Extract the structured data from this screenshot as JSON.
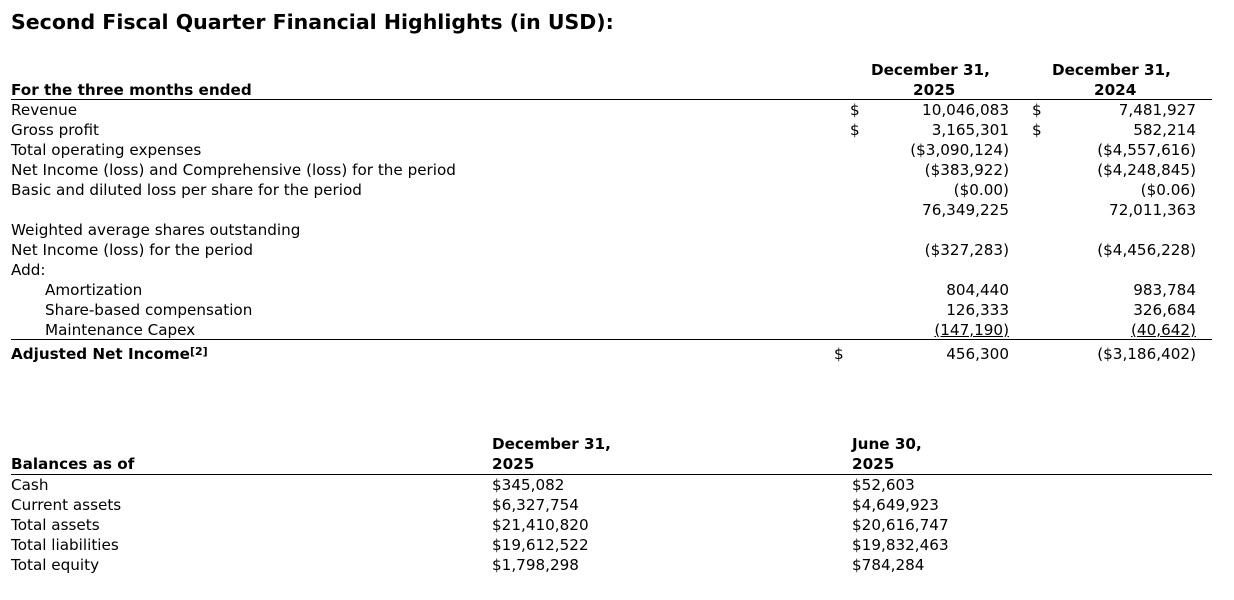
{
  "title": "Second Fiscal Quarter Financial Highlights (in USD):",
  "income": {
    "period_label": "For the three months ended",
    "col1": {
      "line1": "December 31,",
      "line2": "2025"
    },
    "col2": {
      "line1": "December 31,",
      "line2": "2024"
    },
    "dollar": "$",
    "rows": [
      {
        "label": "Revenue",
        "v1": "10,046,083",
        "v2": "7,481,927"
      },
      {
        "label": "Gross profit",
        "v1": "3,165,301",
        "v2": "582,214"
      },
      {
        "label": "Total operating expenses",
        "v1": "($3,090,124)",
        "v2": "($4,557,616)"
      },
      {
        "label": "Net Income (loss) and Comprehensive (loss) for the period",
        "v1": "($383,922)",
        "v2": "($4,248,845)"
      },
      {
        "label": "Basic and diluted loss per share for the period",
        "v1": "($0.00)",
        "v2": "($0.06)"
      },
      {
        "label": "",
        "v1": "76,349,225",
        "v2": "72,011,363"
      },
      {
        "label": "Weighted average shares outstanding",
        "v1": "",
        "v2": ""
      },
      {
        "label": "Net Income (loss) for the period",
        "v1": "($327,283)",
        "v2": "($4,456,228)"
      },
      {
        "label": "Add:",
        "v1": "",
        "v2": ""
      },
      {
        "label": "Amortization",
        "v1": "804,440",
        "v2": "983,784"
      },
      {
        "label": "Share-based compensation",
        "v1": "126,333",
        "v2": "326,684"
      },
      {
        "label": "Maintenance Capex",
        "v1": "(147,190)",
        "v2": "(40,642)"
      }
    ],
    "adjusted": {
      "label": "Adjusted Net Income",
      "note": "[2]",
      "v1": "456,300",
      "v2": "($3,186,402)"
    }
  },
  "balances": {
    "label": "Balances as of",
    "col1": {
      "line1": "December 31,",
      "line2": "2025"
    },
    "col2": {
      "line1": "June 30,",
      "line2": "2025"
    },
    "rows": [
      {
        "label": "Cash",
        "v1": "$345,082",
        "v2": "$52,603"
      },
      {
        "label": "Current assets",
        "v1": "$6,327,754",
        "v2": "$4,649,923"
      },
      {
        "label": "Total assets",
        "v1": "$21,410,820",
        "v2": "$20,616,747"
      },
      {
        "label": "Total liabilities",
        "v1": "$19,612,522",
        "v2": "$19,832,463"
      },
      {
        "label": "Total equity",
        "v1": "$1,798,298",
        "v2": "$784,284"
      }
    ]
  }
}
